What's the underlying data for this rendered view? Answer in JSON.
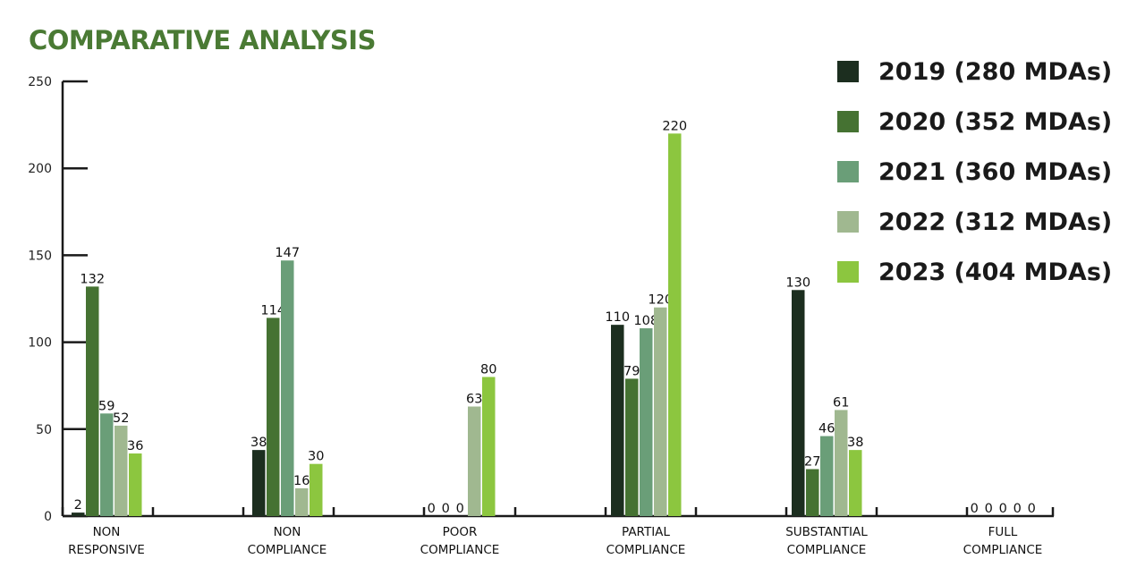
{
  "page": {
    "title": "COMPARATIVE ANALYSIS"
  },
  "chart_data": {
    "type": "bar",
    "title": "COMPARATIVE ANALYSIS",
    "xlabel": "",
    "ylabel": "",
    "ylim": [
      0,
      250
    ],
    "yticks": [
      0,
      50,
      100,
      150,
      200,
      250
    ],
    "grid": false,
    "legend_position": "top-right",
    "categories": [
      [
        "NON",
        "RESPONSIVE"
      ],
      [
        "NON",
        "COMPLIANCE"
      ],
      [
        "POOR",
        "COMPLIANCE"
      ],
      [
        "PARTIAL",
        "COMPLIANCE"
      ],
      [
        "SUBSTANTIAL",
        "COMPLIANCE"
      ],
      [
        "FULL",
        "COMPLIANCE"
      ]
    ],
    "series": [
      {
        "name": "2019 (280 MDAs)",
        "color": "#1c2e1f",
        "values": [
          2,
          38,
          0,
          110,
          130,
          0
        ]
      },
      {
        "name": "2020 (352 MDAs)",
        "color": "#457232",
        "values": [
          132,
          114,
          0,
          79,
          27,
          0
        ]
      },
      {
        "name": "2021 (360 MDAs)",
        "color": "#6a9e78",
        "values": [
          59,
          147,
          0,
          108,
          46,
          0
        ]
      },
      {
        "name": "2022 (312 MDAs)",
        "color": "#a0b890",
        "values": [
          52,
          16,
          63,
          120,
          61,
          0
        ]
      },
      {
        "name": "2023 (404 MDAs)",
        "color": "#8cc63f",
        "values": [
          36,
          30,
          80,
          220,
          38,
          0
        ]
      }
    ]
  }
}
